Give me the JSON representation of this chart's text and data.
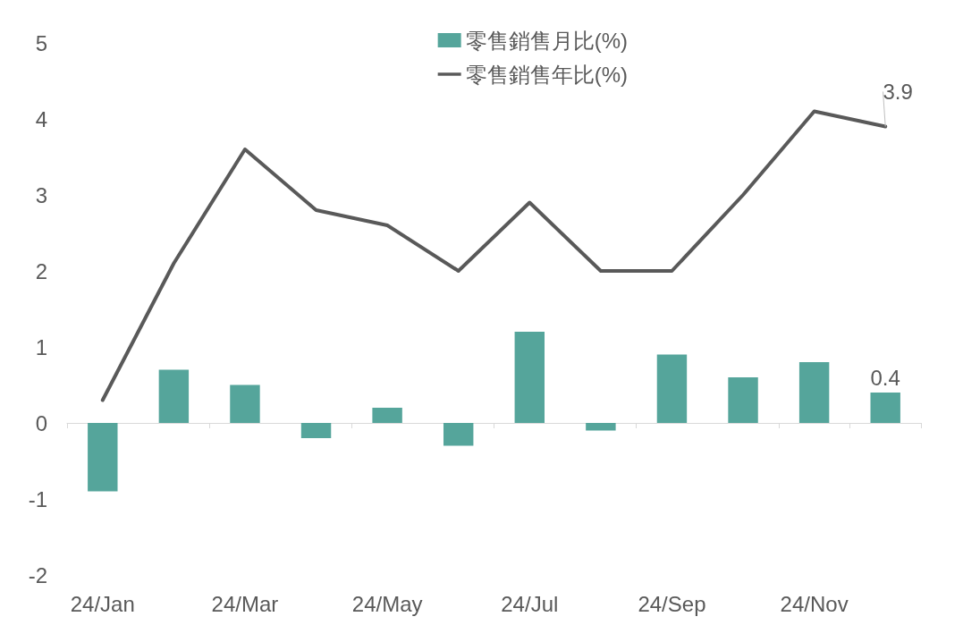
{
  "chart_data": {
    "type": "bar",
    "categories": [
      "24/Jan",
      null,
      "24/Mar",
      null,
      "24/May",
      null,
      "24/Jul",
      null,
      "24/Sep",
      null,
      "24/Nov",
      null
    ],
    "series": [
      {
        "name": "零售銷售月比(%)",
        "color": "#55a59b",
        "values": [
          -0.9,
          0.7,
          0.5,
          -0.2,
          0.2,
          -0.3,
          1.2,
          -0.1,
          0.9,
          0.6,
          0.8,
          0.4
        ],
        "value_labels": [
          null,
          null,
          null,
          null,
          null,
          null,
          null,
          null,
          null,
          null,
          null,
          "0.4"
        ]
      },
      {
        "name": "零售銷售年比(%)",
        "type": "line",
        "color": "#595959",
        "values": [
          0.3,
          2.1,
          3.6,
          2.8,
          2.6,
          2.0,
          2.9,
          2.0,
          2.0,
          3.0,
          4.1,
          3.9
        ],
        "value_labels": [
          null,
          null,
          null,
          null,
          null,
          null,
          null,
          null,
          null,
          null,
          null,
          "3.9"
        ]
      }
    ],
    "ylim": [
      -2,
      5
    ],
    "yticks": [
      -2,
      -1,
      0,
      1,
      2,
      3,
      4,
      5
    ],
    "legend": "top"
  }
}
